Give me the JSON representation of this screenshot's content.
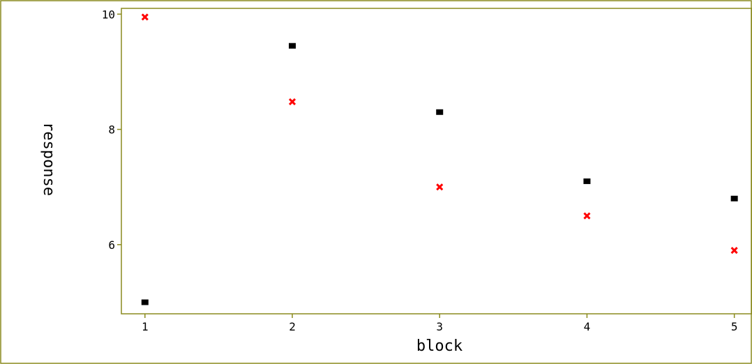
{
  "chart_data": {
    "type": "scatter",
    "title": "",
    "xlabel": "block",
    "ylabel": "response",
    "xlim": [
      0.84,
      5.12
    ],
    "ylim": [
      4.8,
      10.1
    ],
    "x_ticks": [
      1,
      2,
      3,
      4,
      5
    ],
    "x_tick_labels": [
      "1",
      "2",
      "3",
      "4",
      "5"
    ],
    "y_ticks": [
      6,
      8,
      10
    ],
    "y_tick_labels": [
      "6",
      "8",
      "10"
    ],
    "grid": false,
    "legend": "none",
    "frame_color": "#8a8a1e",
    "series": [
      {
        "marker": "square",
        "color": "#000000",
        "x": [
          1,
          2,
          3,
          4,
          5
        ],
        "y": [
          5.0,
          9.45,
          8.3,
          7.1,
          6.8
        ]
      },
      {
        "marker": "x",
        "color": "#ff0000",
        "x": [
          1,
          2,
          3,
          4,
          5
        ],
        "y": [
          9.95,
          8.48,
          7.0,
          6.5,
          5.9
        ]
      }
    ]
  }
}
